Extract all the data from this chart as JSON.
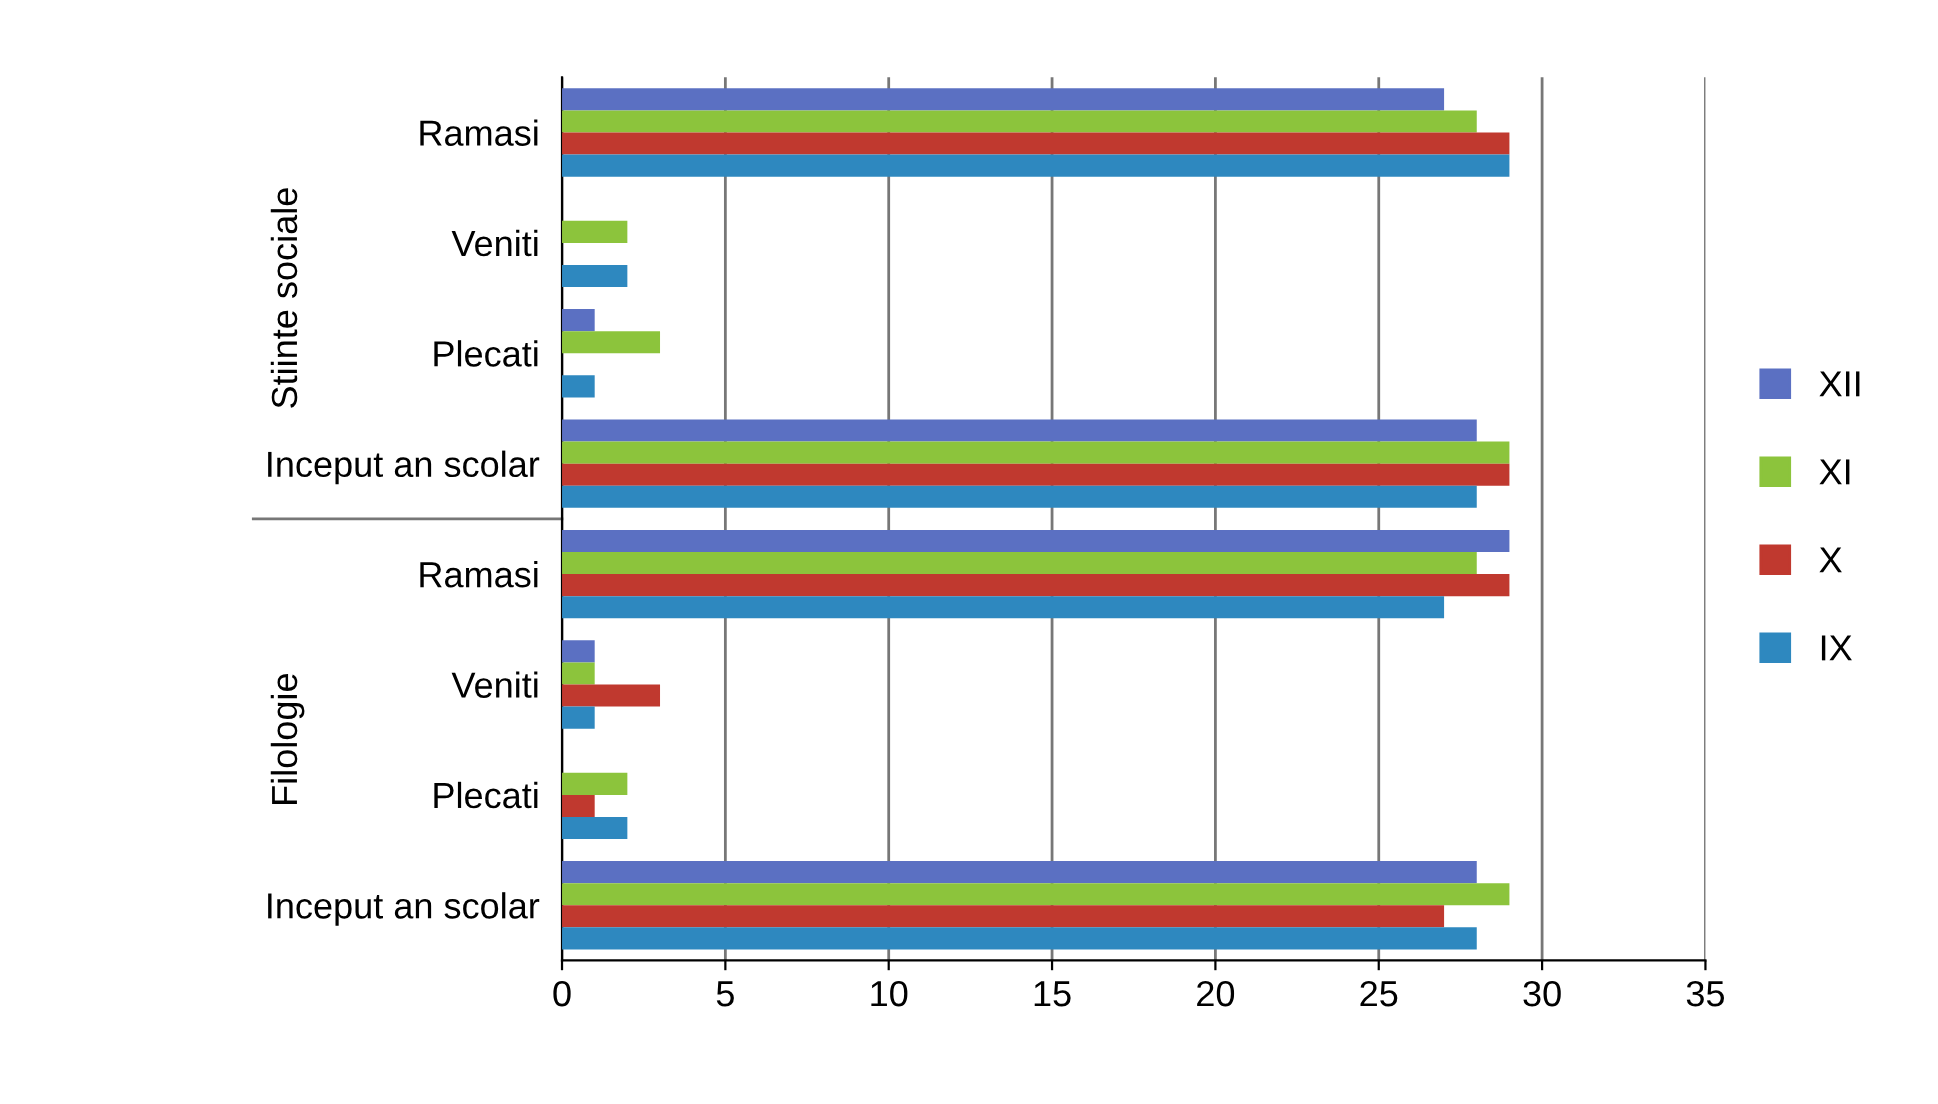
{
  "chart_data": {
    "type": "bar",
    "orientation": "horizontal",
    "categories": [
      "Ramasi",
      "Veniti",
      "Plecati",
      "Inceput an scolar",
      "Ramasi",
      "Veniti",
      "Plecati",
      "Inceput an scolar"
    ],
    "annotations": [
      "Stiinte sociale",
      "Filologie"
    ],
    "series": [
      {
        "name": "XII",
        "color": "#5b70c2",
        "values": [
          27,
          0,
          1,
          28,
          29,
          1,
          0,
          28
        ]
      },
      {
        "name": "XI",
        "color": "#8cc43c",
        "values": [
          28,
          2,
          3,
          29,
          28,
          1,
          2,
          29
        ]
      },
      {
        "name": "X",
        "color": "#c0392f",
        "values": [
          29,
          0,
          0,
          29,
          29,
          3,
          1,
          27
        ]
      },
      {
        "name": "IX",
        "color": "#2e88bf",
        "values": [
          29,
          2,
          1,
          28,
          27,
          1,
          2,
          28
        ]
      }
    ],
    "xlim": [
      0,
      35
    ],
    "xticks": [
      0,
      5,
      10,
      15,
      20,
      25,
      30,
      35
    ],
    "grid": "x",
    "legend": "right"
  }
}
